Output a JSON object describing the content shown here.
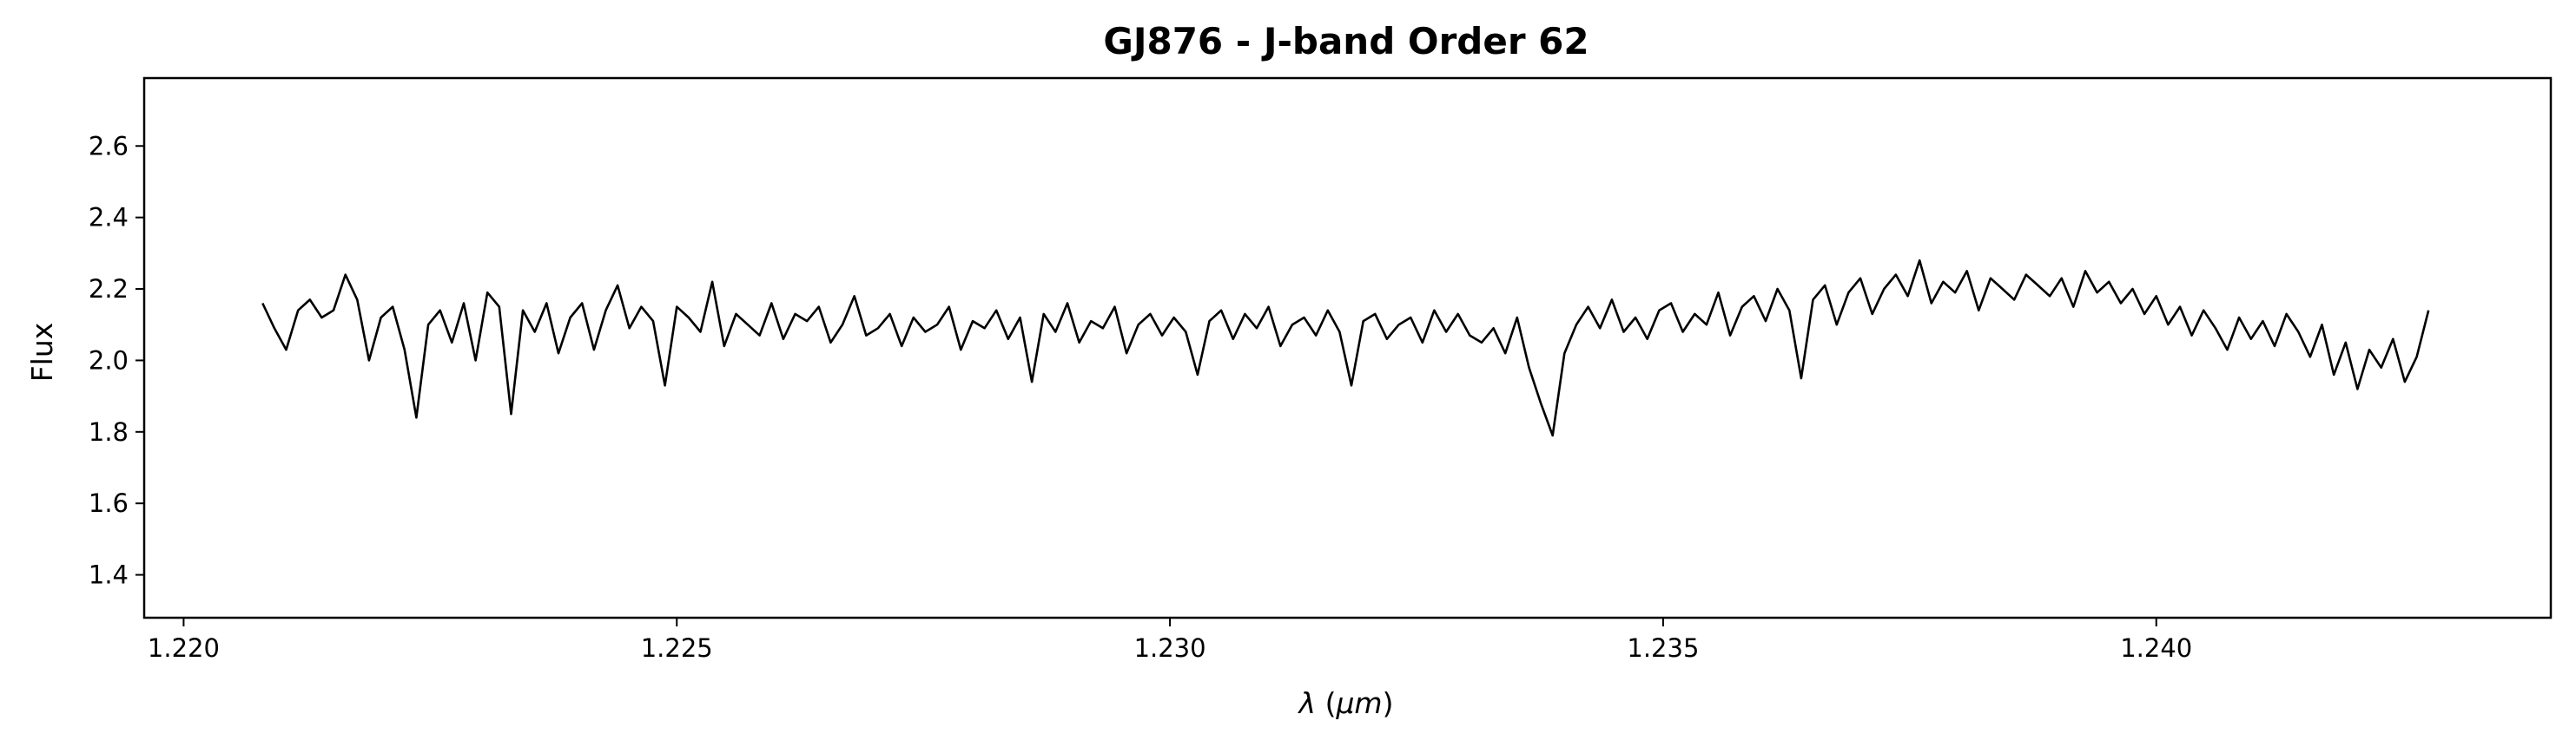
{
  "chart_data": {
    "type": "line",
    "title": "GJ876 - J-band Order 62",
    "xlabel": "λ (μm)",
    "ylabel": "Flux",
    "xlim": [
      1.2196,
      1.244
    ],
    "ylim": [
      1.28,
      2.79
    ],
    "xticks": [
      {
        "value": 1.22,
        "label": "1.220"
      },
      {
        "value": 1.225,
        "label": "1.225"
      },
      {
        "value": 1.23,
        "label": "1.230"
      },
      {
        "value": 1.235,
        "label": "1.235"
      },
      {
        "value": 1.24,
        "label": "1.240"
      }
    ],
    "yticks": [
      {
        "value": 1.4,
        "label": "1.4"
      },
      {
        "value": 1.6,
        "label": "1.6"
      },
      {
        "value": 1.8,
        "label": "1.8"
      },
      {
        "value": 2.0,
        "label": "2.0"
      },
      {
        "value": 2.2,
        "label": "2.2"
      },
      {
        "value": 2.4,
        "label": "2.4"
      },
      {
        "value": 2.6,
        "label": "2.6"
      }
    ],
    "grid": false,
    "line_color": "#000000",
    "series": [
      {
        "x": [
          1.2208,
          1.22092,
          1.22104,
          1.22116,
          1.22128,
          1.2214,
          1.22152,
          1.22164,
          1.22176,
          1.22188,
          1.222,
          1.22212,
          1.22224,
          1.22236,
          1.22248,
          1.2226,
          1.22272,
          1.22284,
          1.22296,
          1.22308,
          1.2232,
          1.22332,
          1.22344,
          1.22356,
          1.22368,
          1.2238,
          1.22392,
          1.22404,
          1.22416,
          1.22428,
          1.2244,
          1.22452,
          1.22464,
          1.22476,
          1.22488,
          1.225,
          1.22512,
          1.22524,
          1.22536,
          1.22548,
          1.2256,
          1.22572,
          1.22584,
          1.22596,
          1.22608,
          1.2262,
          1.22632,
          1.22644,
          1.22656,
          1.22668,
          1.2268,
          1.22692,
          1.22704,
          1.22716,
          1.22728,
          1.2274,
          1.22752,
          1.22764,
          1.22776,
          1.22788,
          1.228,
          1.22812,
          1.22824,
          1.22836,
          1.22848,
          1.2286,
          1.22872,
          1.22884,
          1.22896,
          1.22908,
          1.2292,
          1.22932,
          1.22944,
          1.22956,
          1.22968,
          1.2298,
          1.22992,
          1.23004,
          1.23016,
          1.23028,
          1.2304,
          1.23052,
          1.23064,
          1.23076,
          1.23088,
          1.231,
          1.23112,
          1.23124,
          1.23136,
          1.23148,
          1.2316,
          1.23172,
          1.23184,
          1.23196,
          1.23208,
          1.2322,
          1.23232,
          1.23244,
          1.23256,
          1.23268,
          1.2328,
          1.23292,
          1.23304,
          1.23316,
          1.23328,
          1.2334,
          1.23352,
          1.23364,
          1.23376,
          1.23388,
          1.234,
          1.23412,
          1.23424,
          1.23436,
          1.23448,
          1.2346,
          1.23472,
          1.23484,
          1.23496,
          1.23508,
          1.2352,
          1.23532,
          1.23544,
          1.23556,
          1.23568,
          1.2358,
          1.23592,
          1.23604,
          1.23616,
          1.23628,
          1.2364,
          1.23652,
          1.23664,
          1.23676,
          1.23688,
          1.237,
          1.23712,
          1.23724,
          1.23736,
          1.23748,
          1.2376,
          1.23772,
          1.23784,
          1.23796,
          1.23808,
          1.2382,
          1.23832,
          1.23844,
          1.23856,
          1.23868,
          1.2388,
          1.23892,
          1.23904,
          1.23916,
          1.23928,
          1.2394,
          1.23952,
          1.23964,
          1.23976,
          1.23988,
          1.24,
          1.24012,
          1.24024,
          1.24036,
          1.24048,
          1.2406,
          1.24072,
          1.24084,
          1.24096,
          1.24108,
          1.2412,
          1.24132,
          1.24144,
          1.24156,
          1.24168,
          1.2418,
          1.24192,
          1.24204,
          1.24216,
          1.24228,
          1.2424,
          1.24252,
          1.24264,
          1.24276
        ],
        "y": [
          2.16,
          2.09,
          2.03,
          2.14,
          2.17,
          2.12,
          2.14,
          2.24,
          2.17,
          2.0,
          2.12,
          2.15,
          2.03,
          1.84,
          2.1,
          2.14,
          2.05,
          2.16,
          2.0,
          2.19,
          2.15,
          1.85,
          2.14,
          2.08,
          2.16,
          2.02,
          2.12,
          2.16,
          2.03,
          2.14,
          2.21,
          2.09,
          2.15,
          2.11,
          1.93,
          2.15,
          2.12,
          2.08,
          2.22,
          2.04,
          2.13,
          2.1,
          2.07,
          2.16,
          2.06,
          2.13,
          2.11,
          2.15,
          2.05,
          2.1,
          2.18,
          2.07,
          2.09,
          2.13,
          2.04,
          2.12,
          2.08,
          2.1,
          2.15,
          2.03,
          2.11,
          2.09,
          2.14,
          2.06,
          2.12,
          1.94,
          2.13,
          2.08,
          2.16,
          2.05,
          2.11,
          2.09,
          2.15,
          2.02,
          2.1,
          2.13,
          2.07,
          2.12,
          2.08,
          1.96,
          2.11,
          2.14,
          2.06,
          2.13,
          2.09,
          2.15,
          2.04,
          2.1,
          2.12,
          2.07,
          2.14,
          2.08,
          1.93,
          2.11,
          2.13,
          2.06,
          2.1,
          2.12,
          2.05,
          2.14,
          2.08,
          2.13,
          2.07,
          2.05,
          2.09,
          2.02,
          2.12,
          1.98,
          1.88,
          1.79,
          2.02,
          2.1,
          2.15,
          2.09,
          2.17,
          2.08,
          2.12,
          2.06,
          2.14,
          2.16,
          2.08,
          2.13,
          2.1,
          2.19,
          2.07,
          2.15,
          2.18,
          2.11,
          2.2,
          2.14,
          1.95,
          2.17,
          2.21,
          2.1,
          2.19,
          2.23,
          2.13,
          2.2,
          2.24,
          2.18,
          2.28,
          2.16,
          2.22,
          2.19,
          2.25,
          2.14,
          2.23,
          2.2,
          2.17,
          2.24,
          2.21,
          2.18,
          2.23,
          2.15,
          2.25,
          2.19,
          2.22,
          2.16,
          2.2,
          2.13,
          2.18,
          2.1,
          2.15,
          2.07,
          2.14,
          2.09,
          2.03,
          2.12,
          2.06,
          2.11,
          2.04,
          2.13,
          2.08,
          2.01,
          2.1,
          1.96,
          2.05,
          1.92,
          2.03,
          1.98,
          2.06,
          1.94,
          2.01,
          2.14
        ]
      }
    ]
  }
}
